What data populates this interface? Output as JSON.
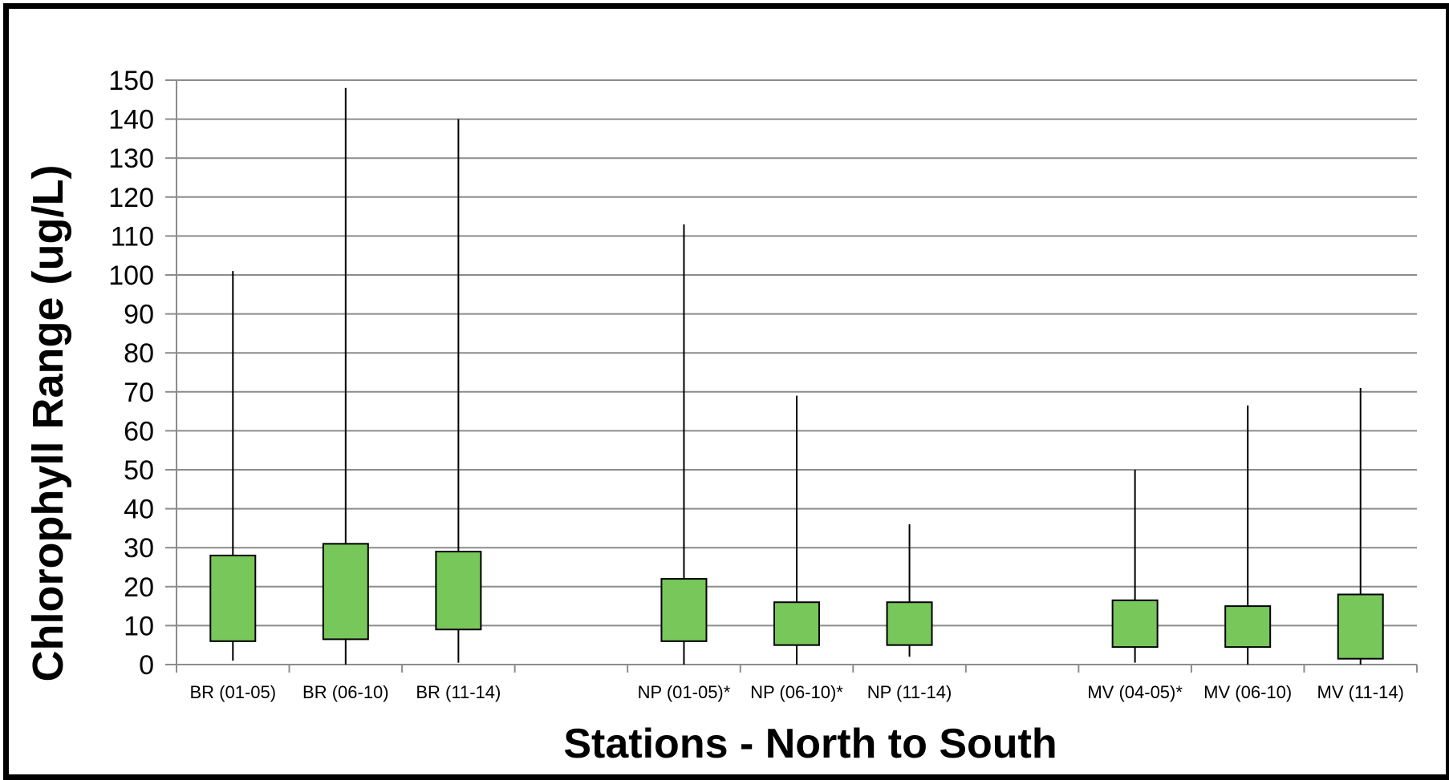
{
  "chart_data": {
    "type": "box",
    "title": "",
    "xlabel": "Stations - North to South",
    "ylabel": "Chlorophyll Range (ug/L)",
    "ylim": [
      0,
      150
    ],
    "yticks": [
      0,
      10,
      20,
      30,
      40,
      50,
      60,
      70,
      80,
      90,
      100,
      110,
      120,
      130,
      140,
      150
    ],
    "grid": true,
    "box_color": "#77c75a",
    "slots": 11,
    "categories": [
      {
        "slot": 0,
        "label": "BR (01-05)",
        "min": 1,
        "q1": 6,
        "q3": 28,
        "max": 101
      },
      {
        "slot": 1,
        "label": "BR (06-10)",
        "min": 0,
        "q1": 6.5,
        "q3": 31,
        "max": 148
      },
      {
        "slot": 2,
        "label": "BR (11-14)",
        "min": 0.5,
        "q1": 9,
        "q3": 29,
        "max": 140
      },
      {
        "slot": 4,
        "label": "NP (01-05)*",
        "min": 0,
        "q1": 6,
        "q3": 22,
        "max": 113
      },
      {
        "slot": 5,
        "label": "NP (06-10)*",
        "min": 0,
        "q1": 5,
        "q3": 16,
        "max": 69
      },
      {
        "slot": 6,
        "label": "NP (11-14)",
        "min": 2,
        "q1": 5,
        "q3": 16,
        "max": 36
      },
      {
        "slot": 8,
        "label": "MV (04-05)*",
        "min": 0.5,
        "q1": 4.5,
        "q3": 16.5,
        "max": 50
      },
      {
        "slot": 9,
        "label": "MV (06-10)",
        "min": 0,
        "q1": 4.5,
        "q3": 15,
        "max": 66.5
      },
      {
        "slot": 10,
        "label": "MV (11-14)",
        "min": 0,
        "q1": 1.5,
        "q3": 18,
        "max": 71
      }
    ]
  }
}
